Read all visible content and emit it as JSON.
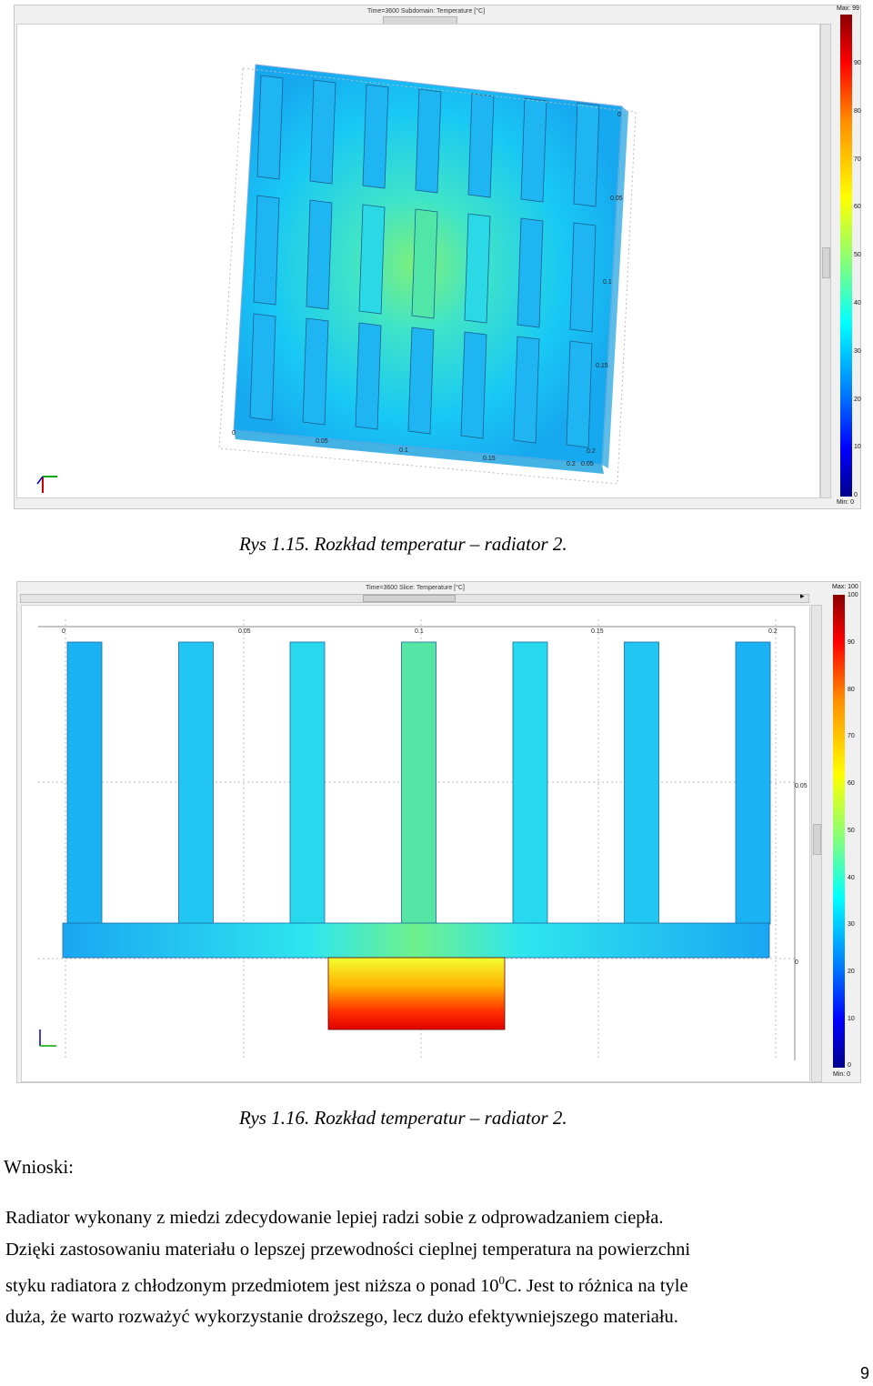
{
  "figure1": {
    "header": "Time=3600   Subdomain: Temperature [°C]",
    "legend": {
      "max_label": "Max: 99",
      "min_label": "Min: 0",
      "ticks": [
        "90",
        "80",
        "70",
        "60",
        "50",
        "40",
        "30",
        "20",
        "10",
        "0"
      ]
    },
    "axis_ticks_bottom": [
      "0",
      "0.05",
      "0.1",
      "0.15",
      "0.2",
      "0.2",
      "0.05"
    ],
    "axis_ticks_right": [
      "0",
      "0.05",
      "0.1",
      "0.15"
    ]
  },
  "caption1": "Rys 1.15. Rozkład temperatur – radiator 2.",
  "figure2": {
    "header": "Time=3600   Slice: Temperature [°C]",
    "legend": {
      "max_label": "Max: 100",
      "top_label": "100",
      "min_label": "Min: 0",
      "ticks": [
        "90",
        "80",
        "70",
        "60",
        "50",
        "40",
        "30",
        "20",
        "10",
        "0"
      ]
    },
    "axis_ticks_top": [
      "0",
      "0.05",
      "0.1",
      "0.15",
      "0.2"
    ],
    "axis_ticks_right": [
      "0.05",
      "0"
    ]
  },
  "caption2": "Rys 1.16. Rozkład temperatur – radiator 2.",
  "conclusions_heading": "Wnioski:",
  "paragraph": {
    "line1": "Radiator wykonany z miedzi zdecydowanie lepiej radzi sobie z odprowadzaniem ciepła.",
    "line2": "Dzięki zastosowaniu materiału o lepszej przewodności cieplnej temperatura na powierzchni",
    "line3_a": "styku radiatora z chłodzonym przedmiotem jest niższa o ponad 10",
    "line3_sup": "0",
    "line3_b": "C. Jest to różnica na tyle",
    "line4": "duża, że warto rozważyć wykorzystanie droższego, lecz dużo efektywniejszego materiału."
  },
  "page_number": "9"
}
